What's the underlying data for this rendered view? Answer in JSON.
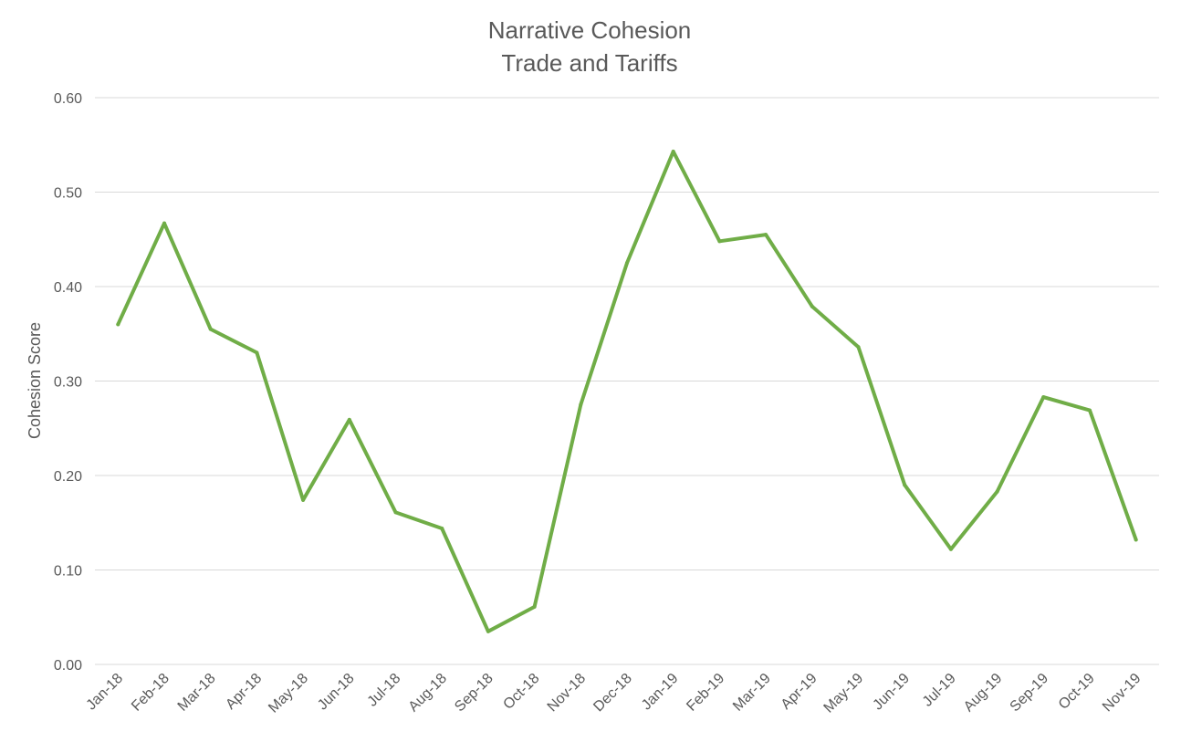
{
  "chart_data": {
    "type": "line",
    "title": "Narrative Cohesion",
    "subtitle": "Trade and Tariffs",
    "xlabel": "",
    "ylabel": "Cohesion Score",
    "ylim": [
      0,
      0.6
    ],
    "yticks": [
      "0.00",
      "0.10",
      "0.20",
      "0.30",
      "0.40",
      "0.50",
      "0.60"
    ],
    "grid": true,
    "legend": "none",
    "line_color": "#70AD47",
    "categories": [
      "Jan-18",
      "Feb-18",
      "Mar-18",
      "Apr-18",
      "May-18",
      "Jun-18",
      "Jul-18",
      "Aug-18",
      "Sep-18",
      "Oct-18",
      "Nov-18",
      "Dec-18",
      "Jan-19",
      "Feb-19",
      "Mar-19",
      "Apr-19",
      "May-19",
      "Jun-19",
      "Jul-19",
      "Aug-19",
      "Sep-19",
      "Oct-19",
      "Nov-19"
    ],
    "series": [
      {
        "values": [
          0.36,
          0.467,
          0.355,
          0.33,
          0.174,
          0.259,
          0.161,
          0.144,
          0.035,
          0.061,
          0.275,
          0.425,
          0.543,
          0.448,
          0.455,
          0.379,
          0.336,
          0.19,
          0.122,
          0.183,
          0.283,
          0.269,
          0.132
        ]
      }
    ]
  }
}
